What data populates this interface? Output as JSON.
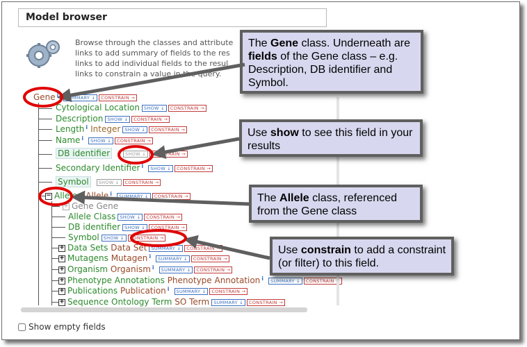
{
  "header": {
    "title": "Model browser"
  },
  "intro": {
    "lines": [
      "Browse through the classes and attribute",
      "links to add summary of fields to the res",
      "links to add individual fields to the resul",
      "links to constrain a value in the query."
    ]
  },
  "labels": {
    "summary": "SUMMARY ↓",
    "show": "SHOW ↓",
    "constrain": "CONSTRAIN →"
  },
  "tree": {
    "gene": "Gene",
    "cytological_location": "Cytological Location",
    "description": "Description",
    "length": "Length",
    "length_type": "Integer",
    "name": "Name",
    "db_identifier": "DB identifier",
    "secondary_identifier": "Secondary Identifier",
    "symbol": "Symbol",
    "alleles": "Alleles",
    "alleles_type": "Allele",
    "gene_gene": "Gene Gene",
    "allele_class": "Allele Class",
    "allele_db_identifier": "DB identifier",
    "allele_symbol": "Symbol",
    "data_sets": "Data Sets",
    "data_sets_type": "Data Set",
    "mutagens": "Mutagens",
    "mutagens_type": "Mutagen",
    "organism": "Organism",
    "organism_type": "Organism",
    "phenotype_annotations": "Phenotype Annotations",
    "phenotype_annotations_type": "Phenotype Annotation",
    "publications": "Publications",
    "publications_type": "Publication",
    "sequence_ontology_term": "Sequence Ontology Term",
    "sequence_ontology_term_type": "SO Term"
  },
  "footer": {
    "show_empty_fields": "Show empty fields"
  },
  "callouts": {
    "gene": {
      "pre": "The ",
      "bold": "Gene",
      "post": " class. Underneath are ",
      "bold2": "fields",
      "post2": " of the Gene class – e.g. Description, DB identifier and Symbol."
    },
    "show": {
      "pre": "Use ",
      "bold": "show",
      "post": " to see this field in your results"
    },
    "allele": {
      "pre": "The ",
      "bold": "Allele",
      "post": " class, referenced from the Gene class"
    },
    "constrain": {
      "pre": "Use ",
      "bold": "constrain",
      "post": " to add a constraint (or filter) to this field."
    }
  },
  "colors": {
    "callout_bg": "#d7d8ef",
    "highlight_ring": "#e00000",
    "field_green": "#2c8a2c"
  }
}
